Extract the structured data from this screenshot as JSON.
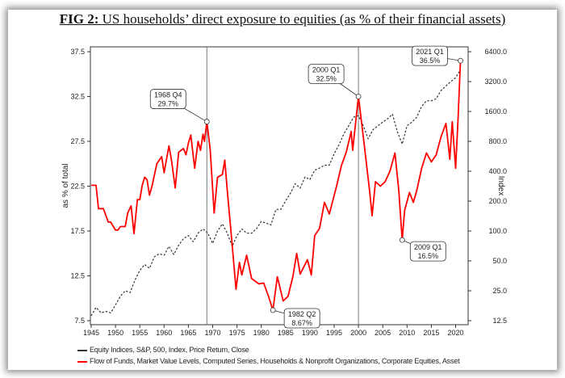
{
  "title": {
    "prefix": "FIG 2:",
    "text": "US households’ direct exposure to equities (as % of their financial assets)"
  },
  "chart_data": {
    "type": "line",
    "title": "US households’ direct exposure to equities (as % of their financial assets)",
    "xlabel": "",
    "ylabel": "as % of total",
    "y2label": "Index",
    "xlim": [
      1945,
      2022.6
    ],
    "ylim": [
      7.5,
      37.5
    ],
    "y2lim": [
      12.5,
      6400
    ],
    "y2scale": "log2",
    "xticks": [
      "1945",
      "1950",
      "1955",
      "1960",
      "1965",
      "1970",
      "1975",
      "1980",
      "1985",
      "1990",
      "1995",
      "2000",
      "2005",
      "2010",
      "2015",
      "2020"
    ],
    "yticks": [
      "7.5",
      "12.5",
      "17.5",
      "22.5",
      "27.5",
      "32.5",
      "37.5"
    ],
    "y2ticks": [
      "12.5",
      "25.0",
      "50.0",
      "100.0",
      "200.0",
      "400.0",
      "800.0",
      "1600.0",
      "3200.0",
      "6400.0"
    ],
    "vlines": [
      1968.8,
      2000.0
    ],
    "series": [
      {
        "name": "Equity Indices, S&P, 500, Index, Price Return, Close",
        "axis": "right",
        "style": "dashed",
        "color": "#333333",
        "x": [
          1945,
          1946,
          1947,
          1948,
          1949,
          1950,
          1951,
          1952,
          1953,
          1954,
          1955,
          1956,
          1957,
          1958,
          1959,
          1960,
          1961,
          1962,
          1963,
          1964,
          1965,
          1966,
          1967,
          1968,
          1969,
          1970,
          1971,
          1972,
          1973,
          1974,
          1975,
          1976,
          1977,
          1978,
          1979,
          1980,
          1981,
          1982,
          1983,
          1984,
          1985,
          1986,
          1987,
          1988,
          1989,
          1990,
          1991,
          1992,
          1993,
          1994,
          1995,
          1996,
          1997,
          1998,
          1999,
          2000,
          2001,
          2002,
          2003,
          2004,
          2005,
          2006,
          2007,
          2008,
          2009,
          2010,
          2011,
          2012,
          2013,
          2014,
          2015,
          2016,
          2017,
          2018,
          2019,
          2020,
          2021
        ],
        "values": [
          14,
          17,
          15,
          15.5,
          15,
          18,
          22,
          25,
          24,
          32,
          40,
          46,
          42,
          55,
          59,
          57,
          70,
          58,
          72,
          84,
          90,
          78,
          95,
          105,
          95,
          75,
          100,
          118,
          95,
          70,
          90,
          105,
          95,
          95,
          105,
          125,
          120,
          115,
          165,
          165,
          200,
          240,
          300,
          270,
          350,
          330,
          410,
          430,
          460,
          460,
          600,
          740,
          950,
          1150,
          1400,
          1450,
          1150,
          850,
          1050,
          1150,
          1250,
          1350,
          1500,
          1000,
          750,
          1150,
          1250,
          1400,
          1800,
          2050,
          2050,
          2150,
          2600,
          2900,
          3200,
          3500,
          4200
        ]
      },
      {
        "name": "Flow of Funds, Market Value Levels, Computed Series, Households & Nonprofit Organizations, Corporate Equities, Asset",
        "axis": "left",
        "style": "solid",
        "color": "#ff0000",
        "x": [
          1945,
          1946,
          1946.5,
          1947.5,
          1948.5,
          1949,
          1950,
          1950.5,
          1951,
          1952,
          1952.5,
          1953.2,
          1953.8,
          1954.5,
          1955,
          1955.5,
          1956,
          1956.5,
          1957,
          1957.5,
          1958.5,
          1959.5,
          1960,
          1961,
          1961.5,
          1962.3,
          1963,
          1964,
          1964.5,
          1965,
          1965.5,
          1966.3,
          1967,
          1967.5,
          1968,
          1968.3,
          1968.8,
          1969.5,
          1970.3,
          1971,
          1972,
          1972.5,
          1973,
          1974,
          1974.8,
          1975.5,
          1976,
          1977,
          1978,
          1979.5,
          1980.5,
          1981.5,
          1982.4,
          1983.3,
          1984.5,
          1985.5,
          1986.5,
          1987.3,
          1988,
          1989.5,
          1990.3,
          1991,
          1992,
          1993,
          1994,
          1995.5,
          1996.5,
          1997.5,
          1998.5,
          1998.8,
          1999.5,
          2000,
          2001,
          2002.3,
          2002.8,
          2003.5,
          2004.5,
          2005.5,
          2006.5,
          2007.5,
          2008.3,
          2009,
          2009.5,
          2010.5,
          2011.3,
          2012,
          2013,
          2014,
          2015,
          2016,
          2017,
          2018,
          2018.8,
          2019.3,
          2020,
          2020.5,
          2021
        ],
        "values": [
          22.6,
          22.6,
          20,
          20,
          18.5,
          18.5,
          17.6,
          17.6,
          18,
          18,
          19.5,
          20.3,
          17.2,
          21,
          21,
          22.6,
          23.5,
          23.2,
          21.5,
          22.5,
          25,
          25.8,
          24,
          27,
          25.5,
          22.3,
          26.3,
          26.7,
          26,
          27.3,
          28.2,
          24.5,
          27.5,
          26.5,
          28.3,
          27.5,
          29.7,
          26.5,
          19.5,
          23.5,
          23.8,
          25.4,
          22,
          16,
          11,
          14,
          12.6,
          14.8,
          12.2,
          11.6,
          11.7,
          10.2,
          8.67,
          12.4,
          9.7,
          10.2,
          12.4,
          15,
          12.7,
          14.3,
          12.6,
          17,
          17.8,
          20.7,
          19.4,
          22.5,
          24.8,
          26.3,
          28.6,
          26.5,
          30,
          32.5,
          28,
          22,
          19.2,
          23,
          22.5,
          23,
          24.2,
          26.2,
          22,
          16.5,
          19.8,
          21.8,
          20.7,
          22,
          24.5,
          26.2,
          25.2,
          26,
          28,
          29.5,
          25.5,
          29.7,
          24.5,
          30,
          36.5
        ]
      }
    ],
    "annotations": [
      {
        "x": 1968.8,
        "y": 29.7,
        "label1": "1968 Q4",
        "label2": "29.7%"
      },
      {
        "x": 1982.4,
        "y": 8.67,
        "label1": "1982 Q2",
        "label2": "8.67%"
      },
      {
        "x": 2000.0,
        "y": 32.5,
        "label1": "2000 Q1",
        "label2": "32.5%"
      },
      {
        "x": 2009.0,
        "y": 16.5,
        "label1": "2009 Q1",
        "label2": "16.5%"
      },
      {
        "x": 2021.0,
        "y": 36.5,
        "label1": "2021 Q1",
        "label2": "36.5%"
      }
    ],
    "legend": "bottom-left"
  }
}
